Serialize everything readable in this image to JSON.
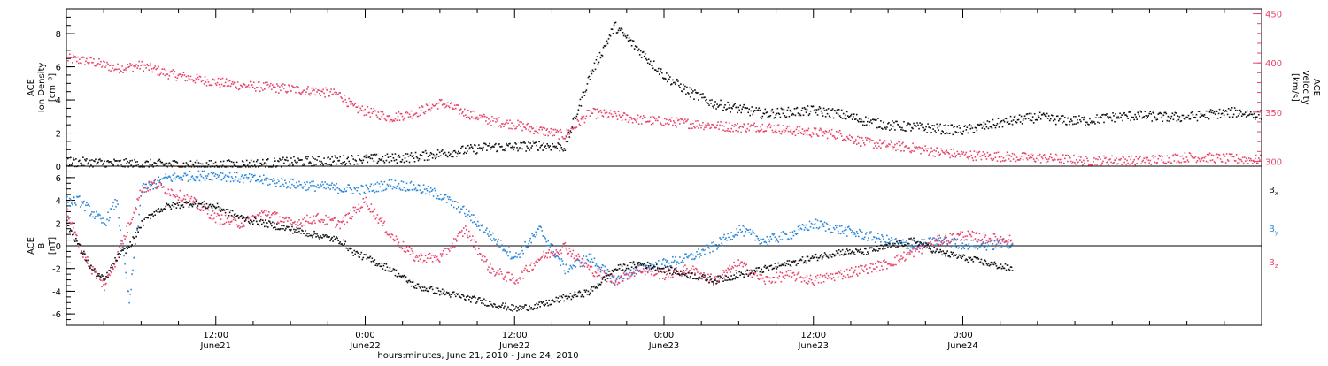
{
  "chart_data": [
    {
      "type": "scatter",
      "panel": "top",
      "ylabel": [
        "ACE",
        "Ion Density",
        "[cm⁻³]"
      ],
      "y2label": [
        "ACE",
        "Velocity",
        "[km/s]"
      ],
      "xlabel": "hours:minutes, June 21, 2010 - June 24, 2010",
      "xlim": [
        0,
        96
      ],
      "ylim": [
        0,
        9.5
      ],
      "y2lim": [
        295,
        455
      ],
      "yticks": [
        0,
        2,
        4,
        6,
        8
      ],
      "y2ticks": [
        300,
        350,
        400,
        450
      ],
      "series": [
        {
          "axis": "y2",
          "color": "#e8436a",
          "x": [
            0,
            2,
            4,
            6,
            8,
            10,
            12,
            14,
            16,
            18,
            20,
            22,
            23,
            26,
            28,
            30,
            32,
            34,
            36,
            38,
            40,
            42,
            44,
            46,
            48,
            50,
            52,
            54,
            56,
            58,
            60,
            62,
            64,
            66,
            68,
            70,
            72,
            74,
            76,
            78,
            80,
            82,
            84,
            86,
            88,
            90,
            92,
            94,
            96
          ],
          "y": [
            405,
            402,
            395,
            398,
            390,
            385,
            381,
            378,
            376,
            374,
            372,
            368,
            355,
            345,
            350,
            360,
            350,
            342,
            338,
            332,
            327,
            350,
            347,
            343,
            341,
            339,
            337,
            335,
            336,
            332,
            330,
            328,
            320,
            317,
            314,
            310,
            307,
            306,
            305,
            304,
            303,
            301,
            302,
            301,
            303,
            305,
            304,
            303,
            302
          ]
        },
        {
          "axis": "y",
          "color": "#111111",
          "x": [
            0,
            2,
            4,
            6,
            8,
            10,
            12,
            14,
            16,
            18,
            20,
            22,
            23,
            26,
            28,
            30,
            32,
            34,
            36,
            38,
            40,
            42,
            44,
            46,
            48,
            50,
            52,
            54,
            56,
            58,
            60,
            62,
            64,
            66,
            68,
            70,
            72,
            74,
            76,
            78,
            80,
            82,
            84,
            86,
            88,
            90,
            92,
            94,
            96
          ],
          "y": [
            0.3,
            0.25,
            0.2,
            0.15,
            0.15,
            0.1,
            0.1,
            0.15,
            0.2,
            0.3,
            0.35,
            0.4,
            0.45,
            0.5,
            0.6,
            0.8,
            1.0,
            1.2,
            1.2,
            1.3,
            1.2,
            5.5,
            8.5,
            7,
            5.5,
            4.5,
            3.8,
            3.5,
            3.2,
            3.3,
            3.4,
            3.2,
            2.8,
            2.5,
            2.4,
            2.3,
            2.2,
            2.5,
            2.8,
            3.0,
            2.8,
            2.8,
            3.0,
            3.1,
            3.0,
            3.0,
            3.2,
            3.3,
            3.1
          ]
        }
      ]
    },
    {
      "type": "scatter",
      "panel": "bottom",
      "ylabel": [
        "ACE",
        "B",
        "[nT]"
      ],
      "xlim": [
        0,
        96
      ],
      "ylim": [
        -7,
        7
      ],
      "yticks": [
        -6,
        -4,
        -2,
        0,
        2,
        4,
        6
      ],
      "xtick_labels": [
        {
          "x": 12,
          "time": "12:00",
          "date": "June21"
        },
        {
          "x": 24,
          "time": "0:00",
          "date": "June22"
        },
        {
          "x": 36,
          "time": "12:00",
          "date": "June22"
        },
        {
          "x": 48,
          "time": "0:00",
          "date": "June23"
        },
        {
          "x": 60,
          "time": "12:00",
          "date": "June23"
        },
        {
          "x": 72,
          "time": "0:00",
          "date": "June24"
        }
      ],
      "series": [
        {
          "name": "Bx",
          "color": "#111111",
          "x": [
            0,
            1,
            2,
            3,
            4,
            5,
            6,
            7,
            8,
            10,
            12,
            14,
            16,
            18,
            20,
            22,
            23,
            24,
            26,
            28,
            30,
            32,
            34,
            36,
            38,
            40,
            42,
            44,
            46,
            48,
            50,
            52,
            54,
            56,
            58,
            60,
            62,
            64,
            66,
            68,
            70,
            72,
            74,
            76
          ],
          "y": [
            2,
            0,
            -2,
            -3,
            -1,
            0,
            2,
            3,
            3.5,
            3.8,
            3.5,
            2.5,
            2,
            1.5,
            1,
            0.5,
            -0.5,
            -1,
            -2,
            -3.5,
            -4,
            -4.5,
            -5,
            -5.5,
            -5.2,
            -4.5,
            -4,
            -2,
            -1.5,
            -2,
            -2.5,
            -3,
            -2.5,
            -2,
            -1.5,
            -1,
            -0.5,
            -0.5,
            0,
            0.5,
            -0.5,
            -1,
            -1.5,
            -2
          ]
        },
        {
          "name": "By",
          "color": "#2a87d8",
          "x": [
            0,
            1,
            2,
            3,
            4,
            5,
            6,
            7,
            8,
            10,
            12,
            14,
            16,
            18,
            20,
            22,
            23,
            24,
            26,
            28,
            30,
            32,
            34,
            36,
            38,
            40,
            42,
            44,
            46,
            48,
            50,
            52,
            54,
            56,
            58,
            60,
            62,
            64,
            66,
            68,
            70,
            72,
            74,
            76
          ],
          "y": [
            4,
            4,
            3,
            2,
            4,
            -5,
            5,
            5.5,
            6,
            6.2,
            6.3,
            6,
            5.8,
            5.5,
            5.3,
            5.1,
            5,
            5,
            5.5,
            5.2,
            4.5,
            3,
            1,
            -1,
            1.5,
            -2,
            -1,
            -3,
            -2,
            -1.5,
            -1,
            0,
            1.5,
            0.5,
            1,
            2,
            1.5,
            1,
            0.5,
            0,
            0.5,
            0.2,
            0.1,
            0.3
          ]
        },
        {
          "name": "Bz",
          "color": "#e8436a",
          "x": [
            0,
            1,
            2,
            3,
            4,
            5,
            6,
            7,
            8,
            10,
            12,
            14,
            16,
            18,
            20,
            22,
            23,
            24,
            26,
            28,
            30,
            32,
            34,
            36,
            38,
            40,
            42,
            44,
            46,
            48,
            50,
            52,
            54,
            56,
            58,
            60,
            62,
            64,
            66,
            68,
            70,
            72,
            74,
            76
          ],
          "y": [
            3,
            0,
            -2,
            -3.5,
            -1,
            2,
            5,
            5.5,
            5,
            4,
            2.5,
            2,
            3,
            2,
            2.5,
            2,
            3,
            4,
            1,
            -1,
            -1,
            1.5,
            -2,
            -3,
            -1,
            0,
            -2,
            -3,
            -2,
            -2.5,
            -2,
            -3,
            -1.5,
            -3,
            -2.5,
            -3,
            -2.5,
            -2,
            -1.5,
            -0.5,
            0.5,
            1,
            0.7,
            0.6
          ]
        }
      ],
      "legend": [
        {
          "label": "B",
          "sub": "x",
          "color": "#111111"
        },
        {
          "label": "B",
          "sub": "y",
          "color": "#2a87d8"
        },
        {
          "label": "B",
          "sub": "z",
          "color": "#e8436a"
        }
      ]
    }
  ]
}
